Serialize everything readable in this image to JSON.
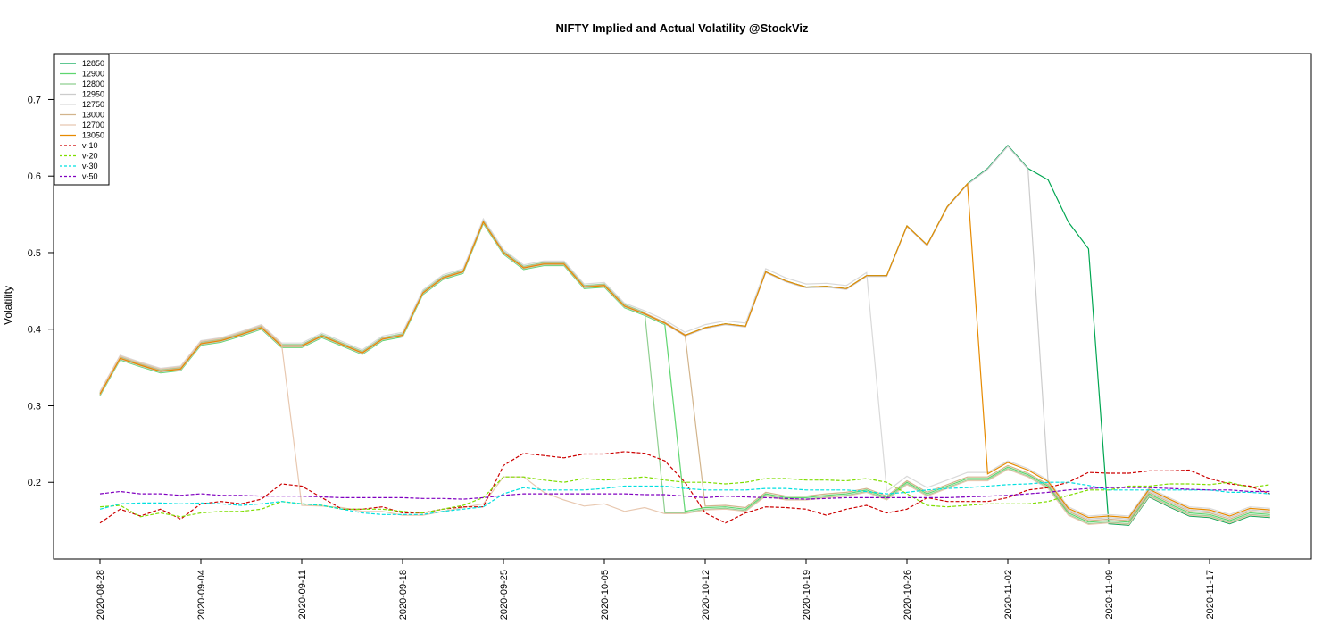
{
  "chart_data": {
    "type": "line",
    "title": "NIFTY Implied and Actual Volatility @StockViz",
    "xlabel": "",
    "ylabel": "Volatility",
    "ylim": [
      0.1,
      0.76
    ],
    "yticks": [
      0.2,
      0.3,
      0.4,
      0.5,
      0.6,
      0.7
    ],
    "grid": false,
    "legend_position": "top-left",
    "x_tick_labels": [
      "2020-08-28",
      "2020-09-04",
      "2020-09-11",
      "2020-09-18",
      "2020-09-25",
      "2020-10-05",
      "2020-10-12",
      "2020-10-19",
      "2020-10-26",
      "2020-11-02",
      "2020-11-09",
      "2020-11-17"
    ],
    "x_tick_index": [
      0,
      5,
      10,
      15,
      20,
      25,
      30,
      35,
      40,
      45,
      50,
      55
    ],
    "x_count": 59,
    "common_iv": [
      0.315,
      0.362,
      0.353,
      0.345,
      0.348,
      0.381,
      0.385,
      0.393,
      0.402,
      0.378,
      0.378,
      0.391,
      0.38,
      0.369,
      0.387,
      0.392,
      0.447,
      0.467,
      0.475,
      0.54,
      0.5,
      0.48,
      0.485,
      0.485,
      0.455,
      0.457,
      0.43,
      0.42,
      0.408,
      0.392,
      0.402,
      0.407,
      0.404,
      0.475,
      0.463,
      0.455,
      0.456,
      0.453,
      0.47,
      0.47,
      0.535,
      0.51,
      0.56,
      0.59,
      0.61,
      0.64,
      0.61,
      0.595,
      0.54,
      0.505,
      0.15,
      0.145,
      0.185,
      0.175,
      0.165,
      0.16,
      0.152,
      0.16,
      0.158
    ],
    "low_iv": [
      0.175,
      0.175,
      0.17,
      0.17,
      0.17,
      0.17,
      0.175,
      0.17,
      0.175,
      0.175,
      0.173,
      0.172,
      0.17,
      0.165,
      0.165,
      0.16,
      0.16,
      0.165,
      0.17,
      0.175,
      0.21,
      0.21,
      0.19,
      0.18,
      0.172,
      0.175,
      0.165,
      0.17,
      0.162,
      0.162,
      0.167,
      0.168,
      0.165,
      0.185,
      0.18,
      0.18,
      0.183,
      0.185,
      0.19,
      0.18,
      0.2,
      0.185,
      0.195,
      0.205,
      0.205,
      0.22,
      0.21,
      0.195,
      0.16,
      0.148,
      0.15,
      0.148,
      0.185,
      0.172,
      0.16,
      0.158,
      0.15,
      0.16,
      0.158
    ],
    "series": [
      {
        "name": "12850",
        "color": "#00a651",
        "drop_index": 50
      },
      {
        "name": "12900",
        "color": "#5ed66f",
        "drop_index": 29
      },
      {
        "name": "12800",
        "color": "#8fcf90",
        "drop_index": 28
      },
      {
        "name": "12950",
        "color": "#cccccc",
        "drop_index": 47
      },
      {
        "name": "12750",
        "color": "#d9d9d9",
        "drop_index": 39
      },
      {
        "name": "13000",
        "color": "#d2b48c",
        "drop_index": 30
      },
      {
        "name": "12700",
        "color": "#e8c8b0",
        "drop_index": 10
      },
      {
        "name": "13050",
        "color": "#e68a00",
        "drop_index": 44
      },
      {
        "name": "v-10",
        "color": "#cc0000",
        "dashed": true,
        "values": [
          0.147,
          0.165,
          0.156,
          0.165,
          0.152,
          0.172,
          0.175,
          0.172,
          0.178,
          0.198,
          0.195,
          0.18,
          0.165,
          0.165,
          0.168,
          0.16,
          0.16,
          0.165,
          0.168,
          0.168,
          0.222,
          0.238,
          0.235,
          0.232,
          0.237,
          0.237,
          0.24,
          0.238,
          0.228,
          0.2,
          0.16,
          0.147,
          0.16,
          0.168,
          0.167,
          0.165,
          0.157,
          0.165,
          0.17,
          0.16,
          0.165,
          0.18,
          0.175,
          0.175,
          0.175,
          0.18,
          0.19,
          0.193,
          0.2,
          0.213,
          0.212,
          0.212,
          0.215,
          0.215,
          0.216,
          0.205,
          0.198,
          0.195,
          0.185
        ]
      },
      {
        "name": "v-20",
        "color": "#7fdd00",
        "dashed": true,
        "values": [
          0.168,
          0.17,
          0.155,
          0.16,
          0.155,
          0.16,
          0.162,
          0.162,
          0.165,
          0.175,
          0.172,
          0.17,
          0.165,
          0.165,
          0.165,
          0.162,
          0.16,
          0.165,
          0.17,
          0.18,
          0.207,
          0.207,
          0.203,
          0.2,
          0.205,
          0.203,
          0.205,
          0.207,
          0.203,
          0.2,
          0.2,
          0.198,
          0.2,
          0.205,
          0.205,
          0.203,
          0.203,
          0.202,
          0.205,
          0.2,
          0.185,
          0.17,
          0.168,
          0.17,
          0.172,
          0.172,
          0.172,
          0.175,
          0.183,
          0.19,
          0.19,
          0.195,
          0.195,
          0.198,
          0.198,
          0.197,
          0.2,
          0.193,
          0.197
        ]
      },
      {
        "name": "v-30",
        "color": "#00e0e0",
        "dashed": true,
        "values": [
          0.165,
          0.172,
          0.173,
          0.173,
          0.172,
          0.173,
          0.172,
          0.17,
          0.172,
          0.175,
          0.172,
          0.17,
          0.165,
          0.16,
          0.158,
          0.158,
          0.158,
          0.162,
          0.165,
          0.168,
          0.185,
          0.193,
          0.19,
          0.19,
          0.19,
          0.192,
          0.195,
          0.195,
          0.195,
          0.192,
          0.19,
          0.19,
          0.19,
          0.192,
          0.192,
          0.19,
          0.19,
          0.19,
          0.188,
          0.185,
          0.187,
          0.19,
          0.192,
          0.193,
          0.195,
          0.197,
          0.198,
          0.2,
          0.2,
          0.196,
          0.19,
          0.19,
          0.19,
          0.19,
          0.19,
          0.19,
          0.187,
          0.187,
          0.185
        ]
      },
      {
        "name": "v-50",
        "color": "#8000c0",
        "dashed": true,
        "values": [
          0.185,
          0.188,
          0.185,
          0.185,
          0.183,
          0.185,
          0.183,
          0.183,
          0.182,
          0.182,
          0.182,
          0.181,
          0.18,
          0.18,
          0.18,
          0.18,
          0.179,
          0.179,
          0.178,
          0.18,
          0.183,
          0.185,
          0.185,
          0.185,
          0.185,
          0.185,
          0.185,
          0.184,
          0.184,
          0.182,
          0.18,
          0.182,
          0.181,
          0.18,
          0.179,
          0.178,
          0.179,
          0.18,
          0.18,
          0.18,
          0.18,
          0.18,
          0.18,
          0.181,
          0.182,
          0.183,
          0.185,
          0.187,
          0.19,
          0.192,
          0.193,
          0.193,
          0.193,
          0.192,
          0.191,
          0.19,
          0.19,
          0.188,
          0.188
        ]
      }
    ]
  }
}
